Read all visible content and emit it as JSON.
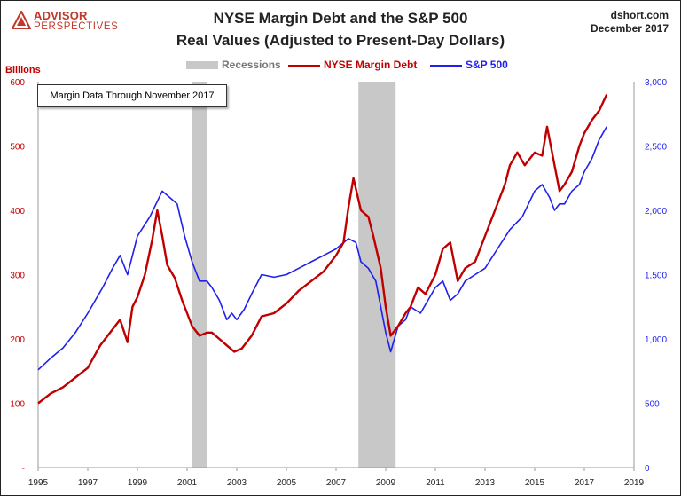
{
  "header": {
    "logo_name": "ADVISOR",
    "logo_sub": "PERSPECTIVES",
    "title": "NYSE Margin Debt and the S&P 500",
    "subtitle": "Real Values (Adjusted to Present-Day Dollars)",
    "source": "dshort.com",
    "date": "December 2017"
  },
  "legend": {
    "recessions": "Recessions",
    "margin": "NYSE Margin Debt",
    "sp500": "S&P 500"
  },
  "annotation": "Margin Data Through November 2017",
  "colors": {
    "margin": "#c00000",
    "sp500": "#1f1ff0",
    "recession": "#c8c8c8",
    "logo": "#c0392b"
  },
  "chart_data": {
    "type": "line",
    "title": "NYSE Margin Debt and the S&P 500",
    "subtitle": "Real Values (Adjusted to Present-Day Dollars)",
    "y_left_label": "Billions",
    "xlim": [
      1995,
      2019
    ],
    "ylim_left": [
      0,
      600
    ],
    "ylim_right": [
      0,
      3000
    ],
    "x_ticks": [
      "1995",
      "1997",
      "1999",
      "2001",
      "2003",
      "2005",
      "2007",
      "2009",
      "2011",
      "2013",
      "2015",
      "2017",
      "2019"
    ],
    "y_left_ticks": [
      "-",
      "100",
      "200",
      "300",
      "400",
      "500",
      "600"
    ],
    "y_right_ticks": [
      "0",
      "500",
      "1,000",
      "1,500",
      "2,000",
      "2,500",
      "3,000"
    ],
    "recessions": [
      [
        2001.2,
        2001.8
      ],
      [
        2007.9,
        2009.4
      ]
    ],
    "series": [
      {
        "name": "NYSE Margin Debt",
        "axis": "left",
        "x": [
          1995.0,
          1995.5,
          1996.0,
          1996.5,
          1997.0,
          1997.5,
          1998.0,
          1998.3,
          1998.6,
          1998.8,
          1999.0,
          1999.3,
          1999.6,
          1999.8,
          2000.0,
          2000.2,
          2000.5,
          2000.8,
          2001.0,
          2001.2,
          2001.5,
          2001.8,
          2002.0,
          2002.3,
          2002.6,
          2002.9,
          2003.2,
          2003.6,
          2004.0,
          2004.5,
          2005.0,
          2005.5,
          2006.0,
          2006.5,
          2007.0,
          2007.3,
          2007.5,
          2007.7,
          2008.0,
          2008.3,
          2008.5,
          2008.8,
          2009.0,
          2009.2,
          2009.5,
          2009.8,
          2010.0,
          2010.3,
          2010.6,
          2011.0,
          2011.3,
          2011.6,
          2011.9,
          2012.2,
          2012.6,
          2013.0,
          2013.4,
          2013.8,
          2014.0,
          2014.3,
          2014.6,
          2015.0,
          2015.3,
          2015.5,
          2015.8,
          2016.0,
          2016.2,
          2016.5,
          2016.8,
          2017.0,
          2017.3,
          2017.6,
          2017.9
        ],
        "values": [
          100,
          115,
          125,
          140,
          155,
          190,
          215,
          230,
          195,
          250,
          265,
          300,
          355,
          400,
          360,
          315,
          295,
          260,
          240,
          220,
          205,
          210,
          210,
          200,
          190,
          180,
          185,
          205,
          235,
          240,
          255,
          275,
          290,
          305,
          330,
          350,
          405,
          450,
          400,
          390,
          360,
          310,
          250,
          205,
          220,
          240,
          250,
          280,
          270,
          300,
          340,
          350,
          290,
          310,
          320,
          360,
          400,
          440,
          470,
          490,
          470,
          490,
          485,
          530,
          470,
          430,
          440,
          460,
          500,
          520,
          540,
          555,
          580
        ]
      },
      {
        "name": "S&P 500",
        "axis": "right",
        "x": [
          1995.0,
          1995.5,
          1996.0,
          1996.5,
          1997.0,
          1997.3,
          1997.6,
          1998.0,
          1998.3,
          1998.6,
          1998.8,
          1999.0,
          1999.5,
          2000.0,
          2000.3,
          2000.6,
          2000.9,
          2001.2,
          2001.5,
          2001.8,
          2002.0,
          2002.3,
          2002.6,
          2002.8,
          2003.0,
          2003.3,
          2003.6,
          2004.0,
          2004.5,
          2005.0,
          2005.5,
          2006.0,
          2006.5,
          2007.0,
          2007.5,
          2007.8,
          2008.0,
          2008.3,
          2008.6,
          2008.9,
          2009.0,
          2009.2,
          2009.5,
          2009.8,
          2010.0,
          2010.4,
          2010.7,
          2011.0,
          2011.3,
          2011.6,
          2011.9,
          2012.2,
          2012.6,
          2013.0,
          2013.5,
          2014.0,
          2014.5,
          2015.0,
          2015.3,
          2015.6,
          2015.8,
          2016.0,
          2016.2,
          2016.5,
          2016.8,
          2017.0,
          2017.3,
          2017.6,
          2017.9
        ],
        "values": [
          760,
          850,
          930,
          1050,
          1200,
          1300,
          1400,
          1550,
          1650,
          1500,
          1650,
          1800,
          1950,
          2150,
          2100,
          2050,
          1800,
          1600,
          1450,
          1450,
          1400,
          1300,
          1150,
          1200,
          1150,
          1230,
          1350,
          1500,
          1480,
          1500,
          1550,
          1600,
          1650,
          1700,
          1780,
          1750,
          1600,
          1550,
          1450,
          1150,
          1050,
          900,
          1100,
          1150,
          1250,
          1200,
          1300,
          1400,
          1450,
          1300,
          1350,
          1450,
          1500,
          1550,
          1700,
          1850,
          1950,
          2150,
          2200,
          2100,
          2000,
          2050,
          2050,
          2150,
          2200,
          2300,
          2400,
          2550,
          2650
        ]
      }
    ]
  }
}
